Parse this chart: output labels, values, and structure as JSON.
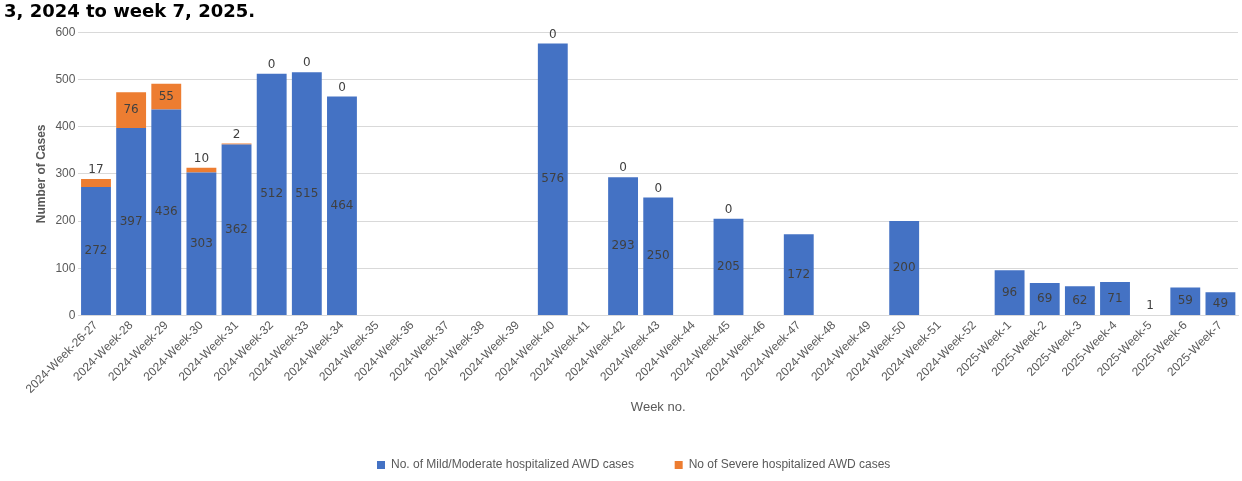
{
  "chart_data": {
    "type": "bar",
    "title": "3, 2024 to week 7, 2025.",
    "xlabel": "Week no.",
    "ylabel": "Number of Cases",
    "categories": [
      "2024-Week-26-27",
      "2024-Week-28",
      "2024-Week-29",
      "2024-Week-30",
      "2024-Week-31",
      "2024-Week-32",
      "2024-Week-33",
      "2024-Week-34",
      "2024-Week-35",
      "2024-Week-36",
      "2024-Week-37",
      "2024-Week-38",
      "2024-Week-39",
      "2024-Week-40",
      "2024-Week-41",
      "2024-Week-42",
      "2024-Week-43",
      "2024-Week-44",
      "2024-Week-45",
      "2024-Week-46",
      "2024-Week-47",
      "2024-Week-48",
      "2024-Week-49",
      "2024-Week-50",
      "2024-Week-51",
      "2024-Week-52",
      "2025-Week-1",
      "2025-Week-2",
      "2025-Week-3",
      "2025-Week-4",
      "2025-Week-5",
      "2025-Week-6",
      "2025-Week-7"
    ],
    "series": [
      {
        "name": "No. of Mild/Moderate hospitalized AWD cases",
        "color": "#4472c4",
        "values": [
          272,
          397,
          436,
          303,
          362,
          512,
          515,
          464,
          null,
          null,
          null,
          null,
          null,
          576,
          null,
          293,
          250,
          null,
          205,
          null,
          172,
          null,
          null,
          200,
          null,
          null,
          96,
          69,
          62,
          71,
          1,
          59,
          49
        ]
      },
      {
        "name": "No of Severe hospitalized AWD cases",
        "color": "#ed7d31",
        "values": [
          17,
          76,
          55,
          10,
          2,
          0,
          0,
          0,
          null,
          null,
          null,
          null,
          null,
          0,
          null,
          0,
          0,
          null,
          0,
          null,
          null,
          null,
          null,
          null,
          null,
          null,
          null,
          null,
          null,
          null,
          null,
          null,
          null
        ]
      }
    ],
    "stacked": true,
    "ylim": [
      0,
      600
    ],
    "yticks": [
      0,
      100,
      200,
      300,
      400,
      500,
      600
    ],
    "grid": "y",
    "legend": "bottom",
    "data_labels": true
  }
}
